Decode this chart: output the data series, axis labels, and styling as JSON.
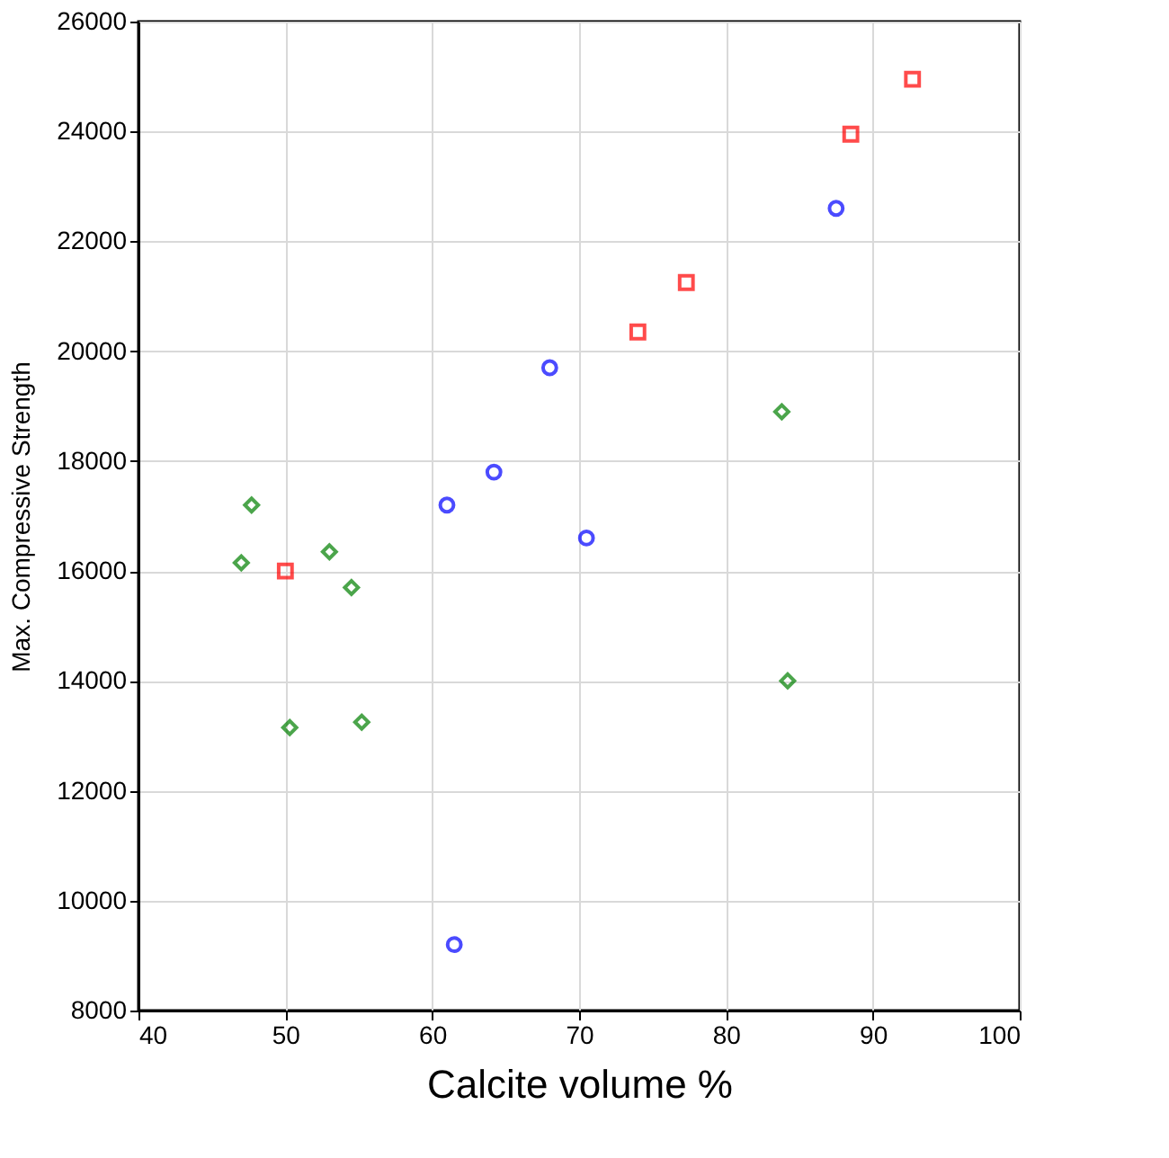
{
  "chart_data": {
    "type": "scatter",
    "xlabel": "Calcite volume %",
    "ylabel": "Max. Compressive  Strength",
    "xlim": [
      40,
      100
    ],
    "xticks": [
      40,
      50,
      60,
      70,
      80,
      90,
      100
    ],
    "ylim": [
      8000,
      26000
    ],
    "yticks": [
      8000,
      10000,
      12000,
      14000,
      16000,
      18000,
      20000,
      22000,
      24000,
      26000
    ],
    "grid": true,
    "series": [
      {
        "color": "#ff0000",
        "marker": "square",
        "x": [
          50,
          74,
          77.3,
          88.5,
          92.7
        ],
        "values": [
          16000,
          20350,
          21250,
          23950,
          24950
        ]
      },
      {
        "color": "#0000ff",
        "marker": "circle",
        "x": [
          61,
          64.2,
          68,
          70.5,
          87.5,
          61.5
        ],
        "values": [
          17200,
          17800,
          19700,
          16600,
          22600,
          9200
        ]
      },
      {
        "color": "#008000",
        "marker": "diamond",
        "x": [
          47,
          47.7,
          53,
          54.5,
          50.3,
          55.2,
          83.8,
          84.2
        ],
        "values": [
          16150,
          17200,
          16350,
          15700,
          13150,
          13250,
          18900,
          14000
        ]
      }
    ]
  }
}
